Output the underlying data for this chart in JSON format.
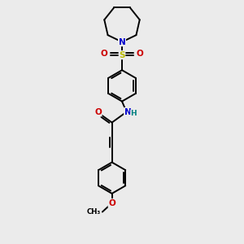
{
  "bg": "#ebebeb",
  "black": "#000000",
  "N_color": "#0000cc",
  "O_color": "#cc0000",
  "S_color": "#bbbb00",
  "NH_color": "#008080",
  "lw": 1.4,
  "figsize": [
    3.0,
    3.0
  ],
  "dpi": 100,
  "xlim": [
    -2.5,
    2.5
  ],
  "ylim": [
    -4.8,
    4.8
  ]
}
